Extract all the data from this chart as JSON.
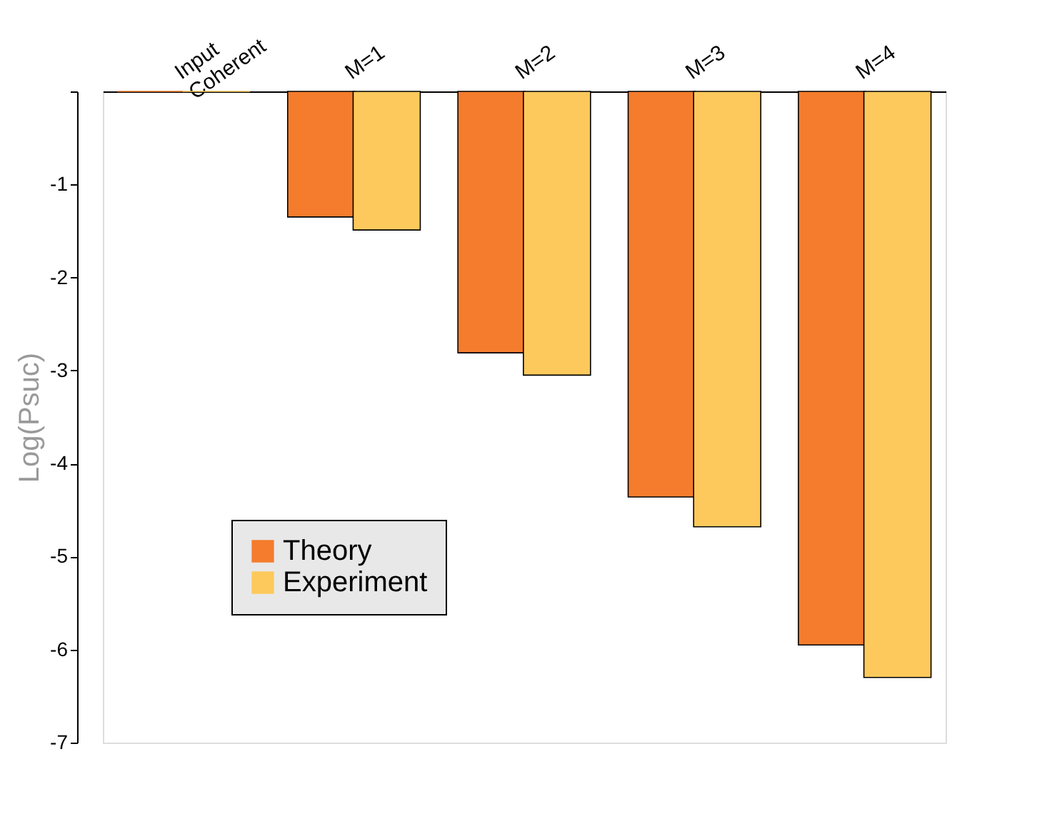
{
  "chart_data": {
    "type": "bar",
    "ylabel": "Log(Psuc)",
    "categories": [
      "Input\nCoherent",
      "M=1",
      "M=2",
      "M=3",
      "M=4"
    ],
    "series": [
      {
        "name": "Theory",
        "color": "#f47c2c",
        "values": [
          0,
          -1.35,
          -2.81,
          -4.36,
          -5.95
        ]
      },
      {
        "name": "Experiment",
        "color": "#fdc95c",
        "values": [
          0,
          -1.49,
          -3.05,
          -4.68,
          -6.3
        ]
      }
    ],
    "ylim": [
      -7,
      0
    ],
    "yticks": [
      {
        "value": 0,
        "label": null
      },
      -1,
      -2,
      -3,
      -4,
      -5,
      -6,
      -7
    ],
    "grid": false,
    "legend": "bottom left"
  }
}
